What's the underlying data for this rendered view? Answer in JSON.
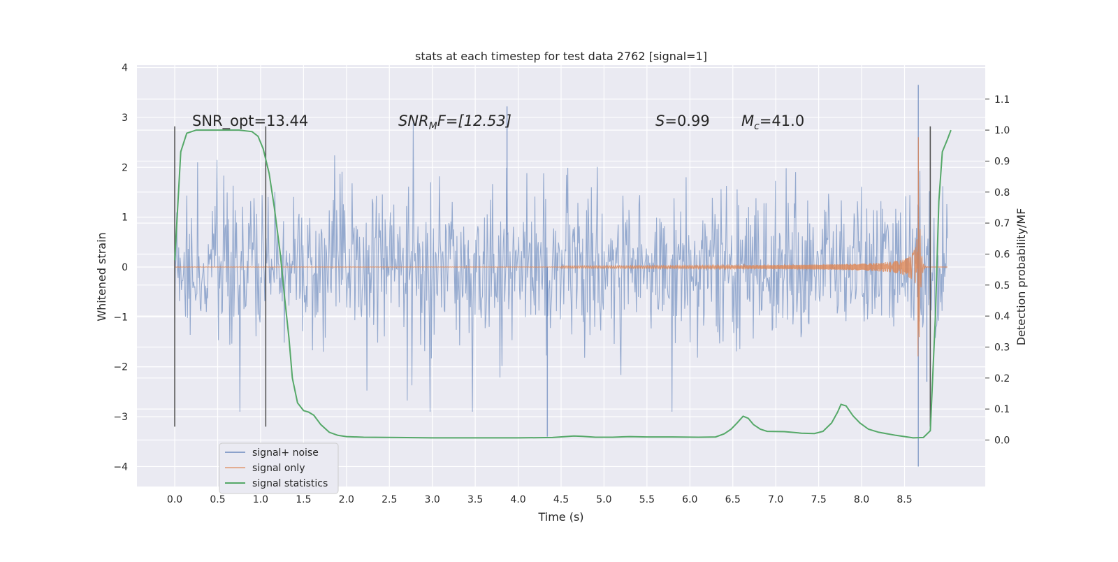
{
  "chart_data": {
    "type": "line",
    "title": "stats at each timestep for test data 2762 [signal=1]",
    "xlabel": "Time (s)",
    "ylabel": "Whitened strain",
    "y2label": "Detection probability/MF",
    "xlim": [
      -0.44,
      9.44
    ],
    "ylim": [
      -4.4,
      4.05
    ],
    "y2lim": [
      -0.15,
      1.21
    ],
    "xticks": [
      0.0,
      0.5,
      1.0,
      1.5,
      2.0,
      2.5,
      3.0,
      3.5,
      4.0,
      4.5,
      5.0,
      5.5,
      6.0,
      6.5,
      7.0,
      7.5,
      8.0,
      8.5
    ],
    "xtick_labels": [
      "0.0",
      "0.5",
      "1.0",
      "1.5",
      "2.0",
      "2.5",
      "3.0",
      "3.5",
      "4.0",
      "4.5",
      "5.0",
      "5.5",
      "6.0",
      "6.5",
      "7.0",
      "7.5",
      "8.0",
      "8.5"
    ],
    "yticks": [
      -4,
      -3,
      -2,
      -1,
      0,
      1,
      2,
      3,
      4
    ],
    "ytick_labels": [
      "−4",
      "−3",
      "−2",
      "−1",
      "0",
      "1",
      "2",
      "3",
      "4"
    ],
    "y2ticks": [
      0.0,
      0.1,
      0.2,
      0.3,
      0.4,
      0.5,
      0.6,
      0.7,
      0.8,
      0.9,
      1.0,
      1.1
    ],
    "y2tick_labels": [
      "0.0",
      "0.1",
      "0.2",
      "0.3",
      "0.4",
      "0.5",
      "0.6",
      "0.7",
      "0.8",
      "0.9",
      "1.0",
      "1.1"
    ],
    "grid": true,
    "legend_position": "lower-left",
    "annotations": {
      "snr_opt": "SNR_opt=13.44",
      "snr_mf_main": "SNR",
      "snr_mf_sub": "M",
      "snr_mf_rest": "F=[12.53]",
      "s_main": "S",
      "s_rest": "=0.99",
      "mc_main": "M",
      "mc_sub": "c",
      "mc_rest": "=41.0"
    },
    "window_markers_x": [
      0.0,
      1.06,
      8.8
    ],
    "window_markers_yrange": [
      -3.2,
      2.82
    ],
    "series": [
      {
        "name": "signal+ noise",
        "color": "#4c72b0",
        "x_range": [
          0.0,
          9.0
        ],
        "typical_amplitude": 1.3,
        "min": -4.0,
        "max": 3.65,
        "notable_spikes": [
          [
            3.87,
            3.22
          ],
          [
            4.34,
            -3.4
          ],
          [
            8.66,
            3.65
          ],
          [
            8.66,
            -4.0
          ],
          [
            8.76,
            -2.3
          ]
        ]
      },
      {
        "name": "signal only",
        "color": "#dd8452",
        "x_range": [
          0.0,
          9.0
        ],
        "chirp_start": 4.5,
        "merger_time": 8.66,
        "peak_amplitude": 2.8
      },
      {
        "name": "signal statistics",
        "color": "#55a868",
        "axis": "right",
        "points": [
          [
            0.0,
            0.58
          ],
          [
            0.07,
            0.93
          ],
          [
            0.14,
            0.99
          ],
          [
            0.25,
            1.0
          ],
          [
            0.5,
            1.0
          ],
          [
            0.75,
            1.0
          ],
          [
            0.9,
            0.995
          ],
          [
            0.97,
            0.98
          ],
          [
            1.03,
            0.94
          ],
          [
            1.1,
            0.86
          ],
          [
            1.16,
            0.75
          ],
          [
            1.23,
            0.6
          ],
          [
            1.28,
            0.46
          ],
          [
            1.33,
            0.33
          ],
          [
            1.37,
            0.2
          ],
          [
            1.43,
            0.12
          ],
          [
            1.5,
            0.095
          ],
          [
            1.56,
            0.09
          ],
          [
            1.62,
            0.08
          ],
          [
            1.7,
            0.05
          ],
          [
            1.8,
            0.025
          ],
          [
            1.9,
            0.015
          ],
          [
            2.0,
            0.011
          ],
          [
            2.2,
            0.009
          ],
          [
            2.6,
            0.008
          ],
          [
            3.0,
            0.007
          ],
          [
            3.5,
            0.007
          ],
          [
            4.0,
            0.007
          ],
          [
            4.4,
            0.008
          ],
          [
            4.55,
            0.011
          ],
          [
            4.65,
            0.013
          ],
          [
            4.75,
            0.012
          ],
          [
            4.9,
            0.009
          ],
          [
            5.1,
            0.009
          ],
          [
            5.3,
            0.011
          ],
          [
            5.5,
            0.01
          ],
          [
            5.8,
            0.01
          ],
          [
            6.1,
            0.009
          ],
          [
            6.3,
            0.01
          ],
          [
            6.4,
            0.02
          ],
          [
            6.48,
            0.035
          ],
          [
            6.55,
            0.055
          ],
          [
            6.62,
            0.077
          ],
          [
            6.68,
            0.07
          ],
          [
            6.74,
            0.05
          ],
          [
            6.82,
            0.035
          ],
          [
            6.9,
            0.028
          ],
          [
            7.1,
            0.027
          ],
          [
            7.3,
            0.022
          ],
          [
            7.45,
            0.021
          ],
          [
            7.55,
            0.028
          ],
          [
            7.65,
            0.055
          ],
          [
            7.72,
            0.09
          ],
          [
            7.76,
            0.115
          ],
          [
            7.82,
            0.11
          ],
          [
            7.9,
            0.078
          ],
          [
            7.98,
            0.055
          ],
          [
            8.08,
            0.035
          ],
          [
            8.2,
            0.025
          ],
          [
            8.4,
            0.015
          ],
          [
            8.6,
            0.007
          ],
          [
            8.72,
            0.008
          ],
          [
            8.8,
            0.03
          ],
          [
            8.86,
            0.4
          ],
          [
            8.9,
            0.77
          ],
          [
            8.94,
            0.93
          ],
          [
            9.0,
            0.97
          ],
          [
            9.04,
            1.0
          ]
        ]
      }
    ]
  }
}
